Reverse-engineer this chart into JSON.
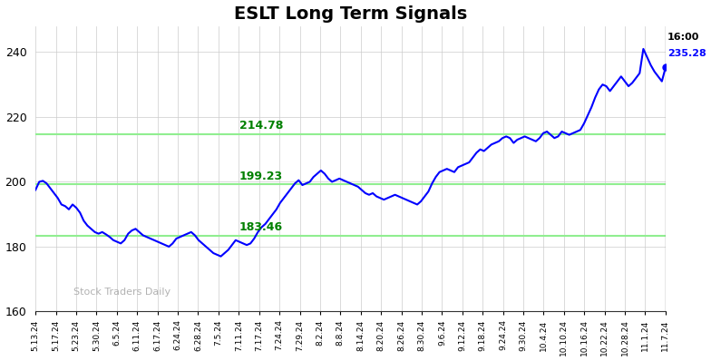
{
  "title": "ESLT Long Term Signals",
  "title_fontsize": 14,
  "watermark": "Stock Traders Daily",
  "xlim_labels": [
    "5.13.24",
    "5.17.24",
    "5.23.24",
    "5.30.24",
    "6.5.24",
    "6.11.24",
    "6.17.24",
    "6.24.24",
    "6.28.24",
    "7.5.24",
    "7.11.24",
    "7.17.24",
    "7.24.24",
    "7.29.24",
    "8.2.24",
    "8.8.24",
    "8.14.24",
    "8.20.24",
    "8.26.24",
    "8.30.24",
    "9.6.24",
    "9.12.24",
    "9.18.24",
    "9.24.24",
    "9.30.24",
    "10.4.24",
    "10.10.24",
    "10.16.24",
    "10.22.24",
    "10.28.24",
    "11.1.24",
    "11.7.24"
  ],
  "ylim": [
    160,
    248
  ],
  "yticks": [
    160,
    180,
    200,
    220,
    240
  ],
  "hlines": [
    183.46,
    199.23,
    214.78
  ],
  "hline_color": "#90EE90",
  "hline_label_color": "#008000",
  "last_price": 235.28,
  "last_time": "16:00",
  "last_price_color": "#0000FF",
  "line_color": "#0000FF",
  "line_width": 1.5,
  "dot_color": "#0000FF",
  "vline_color": "#888888",
  "background_color": "#FFFFFF",
  "grid_color": "#CCCCCC",
  "prices": [
    197.5,
    200.0,
    200.3,
    199.5,
    198.0,
    196.5,
    195.0,
    193.0,
    192.5,
    191.5,
    193.0,
    192.0,
    190.5,
    188.0,
    186.5,
    185.5,
    184.5,
    184.0,
    184.5,
    183.8,
    183.0,
    182.0,
    181.5,
    181.0,
    182.0,
    184.0,
    185.0,
    185.5,
    184.5,
    183.5,
    183.0,
    182.5,
    182.0,
    181.5,
    181.0,
    180.5,
    180.0,
    181.0,
    182.5,
    183.0,
    183.5,
    184.0,
    184.5,
    183.5,
    182.0,
    181.0,
    180.0,
    179.0,
    178.0,
    177.5,
    177.0,
    178.0,
    179.0,
    180.5,
    182.0,
    181.5,
    181.0,
    180.5,
    181.0,
    182.5,
    184.5,
    186.0,
    187.0,
    188.5,
    190.0,
    191.5,
    193.5,
    195.0,
    196.5,
    198.0,
    199.5,
    200.5,
    199.0,
    199.5,
    200.0,
    201.5,
    202.5,
    203.5,
    202.5,
    201.0,
    200.0,
    200.5,
    201.0,
    200.5,
    200.0,
    199.5,
    199.0,
    198.5,
    197.5,
    196.5,
    196.0,
    196.5,
    195.5,
    195.0,
    194.5,
    195.0,
    195.5,
    196.0,
    195.5,
    195.0,
    194.5,
    194.0,
    193.5,
    193.0,
    194.0,
    195.5,
    197.0,
    199.5,
    201.5,
    203.0,
    203.5,
    204.0,
    203.5,
    203.0,
    204.5,
    205.0,
    205.5,
    206.0,
    207.5,
    209.0,
    210.0,
    209.5,
    210.5,
    211.5,
    212.0,
    212.5,
    213.5,
    214.0,
    213.5,
    212.0,
    213.0,
    213.5,
    214.0,
    213.5,
    213.0,
    212.5,
    213.5,
    215.0,
    215.5,
    214.5,
    213.5,
    214.0,
    215.5,
    215.0,
    214.5,
    215.0,
    215.5,
    216.0,
    218.0,
    220.5,
    223.0,
    226.0,
    228.5,
    230.0,
    229.5,
    228.0,
    229.5,
    231.0,
    232.5,
    231.0,
    229.5,
    230.5,
    232.0,
    233.5,
    241.0,
    238.5,
    236.0,
    234.0,
    232.5,
    231.0,
    235.28
  ]
}
